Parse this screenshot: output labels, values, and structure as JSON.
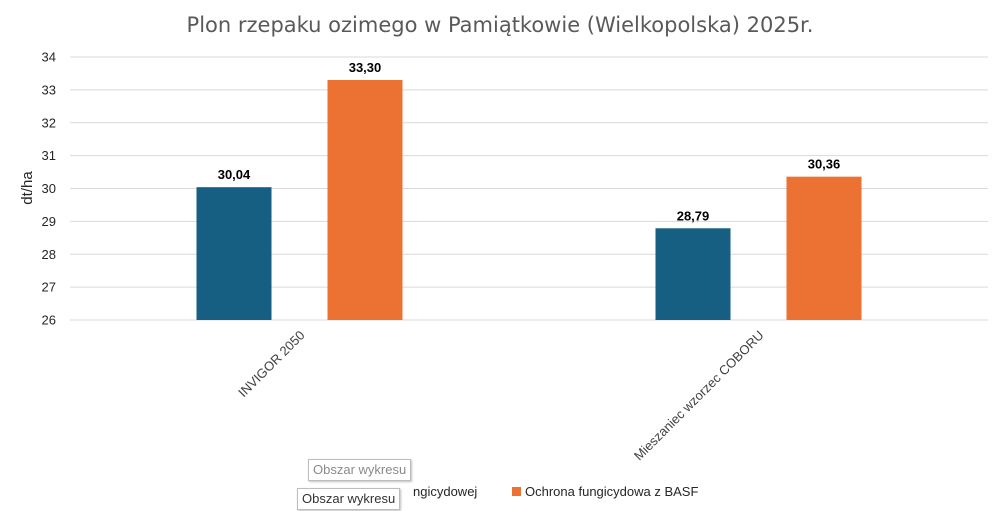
{
  "chart_data": {
    "type": "bar",
    "title": "Plon rzepaku ozimego w Pamiątkowie (Wielkopolska) 2025r.",
    "xlabel": "",
    "ylabel": "dt/ha",
    "ylim": [
      26,
      34
    ],
    "yticks": [
      "26",
      "27",
      "28",
      "29",
      "30",
      "31",
      "32",
      "33",
      "34"
    ],
    "grid": true,
    "legend_position": "bottom",
    "categories": [
      "INVIGOR 2050",
      "Mieszaniec wzorzec COBORU"
    ],
    "series": [
      {
        "name": "Bez ochrony fungicydowej",
        "legend_visible_text": "ngicydowej",
        "color": "#175f82",
        "values": [
          30.04,
          28.79
        ],
        "labels": [
          "30,04",
          "28,79"
        ]
      },
      {
        "name": "Ochrona fungicydowa z BASF",
        "legend_visible_text": "Ochrona fungicydowa z BASF",
        "color": "#eb7233",
        "values": [
          33.3,
          30.36
        ],
        "labels": [
          "33,30",
          "30,36"
        ]
      }
    ]
  },
  "tooltips": [
    "Obszar wykresu",
    "Obszar wykresu"
  ],
  "colors": {
    "gridline": "#d9d9d9",
    "axis_text": "#262626",
    "title_text": "#595959"
  }
}
